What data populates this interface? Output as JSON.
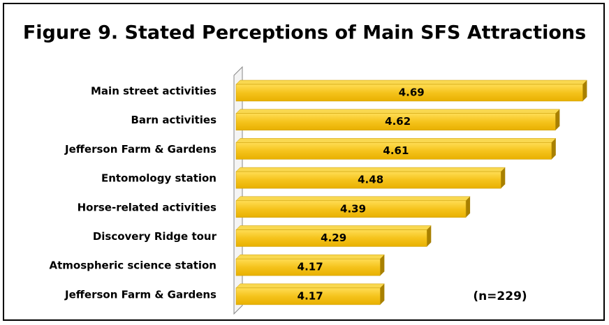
{
  "chart_data": {
    "type": "bar",
    "orientation": "horizontal",
    "title": "Figure 9.  Stated Perceptions of Main SFS Attractions",
    "categories": [
      "Main street activities",
      "Barn activities",
      "Jefferson Farm & Gardens",
      "Entomology station",
      "Horse-related activities",
      "Discovery Ridge tour",
      "Atmospheric science station",
      "Jefferson Farm & Gardens"
    ],
    "values": [
      4.69,
      4.62,
      4.61,
      4.48,
      4.39,
      4.29,
      4.17,
      4.17
    ],
    "color": "#f5c31c",
    "xlim": [
      3.8,
      4.7
    ],
    "annotations": [
      "(n=229)"
    ]
  }
}
